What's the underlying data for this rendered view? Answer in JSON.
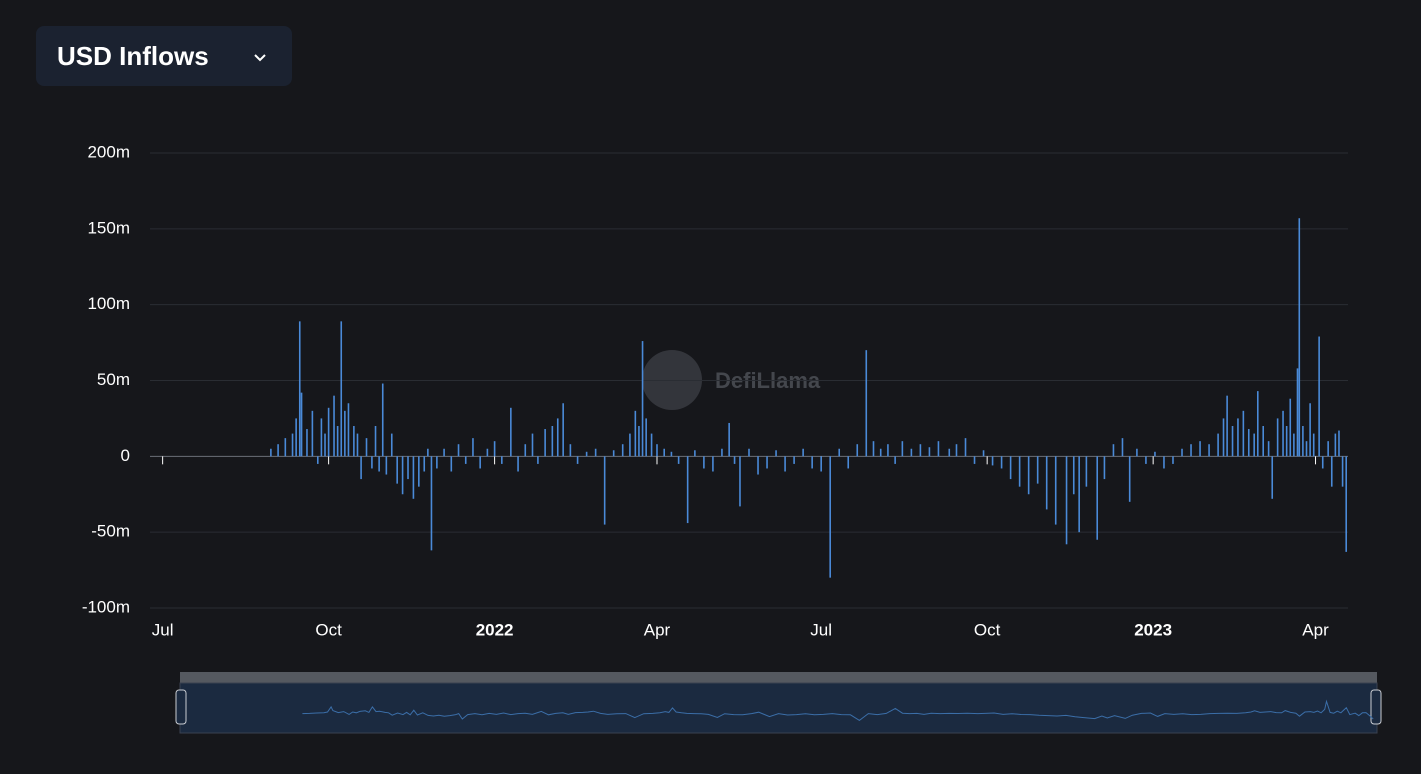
{
  "header": {
    "dropdown": "USD Inflows"
  },
  "chart_data": {
    "type": "bar",
    "watermark": "DefiLlama",
    "color": "#4a8ad8",
    "x": [
      60,
      64,
      68,
      72,
      74,
      76,
      77,
      80,
      83,
      86,
      88,
      90,
      92,
      95,
      97,
      99,
      101,
      103,
      106,
      108,
      110,
      113,
      116,
      118,
      120,
      122,
      124,
      127,
      130,
      133,
      136,
      139,
      142,
      145,
      147,
      149,
      152,
      156,
      160,
      164,
      168,
      172,
      176,
      180,
      184,
      188,
      193,
      197,
      201,
      205,
      208,
      212,
      216,
      219,
      222,
      226,
      230,
      235,
      240,
      245,
      250,
      255,
      259,
      262,
      264,
      266,
      268,
      271,
      274,
      278,
      282,
      286,
      291,
      295,
      300,
      305,
      310,
      314,
      317,
      320,
      325,
      330,
      335,
      340,
      345,
      350,
      355,
      360,
      365,
      370,
      375,
      380,
      385,
      390,
      394,
      398,
      402,
      406,
      410,
      415,
      420,
      425,
      430,
      436,
      440,
      445,
      450,
      455,
      460,
      465,
      470,
      475,
      480,
      485,
      490,
      495,
      501,
      505,
      508,
      512,
      518,
      522,
      527,
      532,
      536,
      540,
      545,
      550,
      555,
      560,
      565,
      570,
      575,
      580,
      585,
      588,
      590,
      593,
      596,
      599,
      602,
      605,
      607,
      610,
      613,
      615,
      618,
      621,
      623,
      625,
      627,
      629,
      630,
      632,
      634,
      636,
      638,
      641,
      643,
      646,
      648,
      650,
      652,
      654,
      656
    ],
    "values": [
      5,
      8,
      12,
      15,
      25,
      89,
      42,
      18,
      30,
      -5,
      25,
      15,
      32,
      40,
      20,
      89,
      30,
      35,
      20,
      15,
      -15,
      12,
      -8,
      20,
      -10,
      48,
      -12,
      15,
      -18,
      -25,
      -15,
      -28,
      -20,
      -10,
      5,
      -62,
      -8,
      5,
      -10,
      8,
      -5,
      12,
      -8,
      5,
      10,
      -5,
      32,
      -10,
      8,
      15,
      -5,
      18,
      20,
      25,
      35,
      8,
      -5,
      3,
      5,
      -45,
      4,
      8,
      15,
      30,
      20,
      76,
      25,
      15,
      8,
      5,
      3,
      -5,
      -44,
      4,
      -8,
      -10,
      5,
      22,
      -5,
      -33,
      5,
      -12,
      -8,
      4,
      -10,
      -5,
      5,
      -8,
      -10,
      -80,
      5,
      -8,
      8,
      70,
      10,
      5,
      8,
      -5,
      10,
      5,
      8,
      6,
      10,
      5,
      8,
      12,
      -5,
      4,
      -6,
      -8,
      -15,
      -20,
      -25,
      -18,
      -35,
      -45,
      -58,
      -25,
      -50,
      -20,
      -55,
      -15,
      8,
      12,
      -30,
      5,
      -5,
      3,
      -8,
      -5,
      5,
      8,
      10,
      8,
      15,
      25,
      40,
      20,
      25,
      30,
      18,
      15,
      43,
      20,
      10,
      -28,
      25,
      30,
      20,
      38,
      15,
      58,
      157,
      20,
      10,
      35,
      15,
      79,
      -8,
      10,
      -20,
      15,
      17,
      -20,
      -63
    ],
    "xlim": [
      -7,
      657
    ],
    "xticks": [
      {
        "value": 0,
        "label": "Jul"
      },
      {
        "value": 92,
        "label": "Oct"
      },
      {
        "value": 184,
        "label": "2022"
      },
      {
        "value": 274,
        "label": "Apr"
      },
      {
        "value": 365,
        "label": "Jul"
      },
      {
        "value": 457,
        "label": "Oct"
      },
      {
        "value": 549,
        "label": "2023"
      },
      {
        "value": 639,
        "label": "Apr"
      }
    ],
    "ylim": [
      -100,
      200
    ],
    "yticks": [
      {
        "value": -100,
        "label": "-100m"
      },
      {
        "value": -50,
        "label": "-50m"
      },
      0,
      {
        "value": 50,
        "label": "50m"
      },
      {
        "value": 100,
        "label": "100m"
      },
      {
        "value": 150,
        "label": "150m"
      },
      {
        "value": 200,
        "label": "200m"
      }
    ],
    "grid": true
  }
}
